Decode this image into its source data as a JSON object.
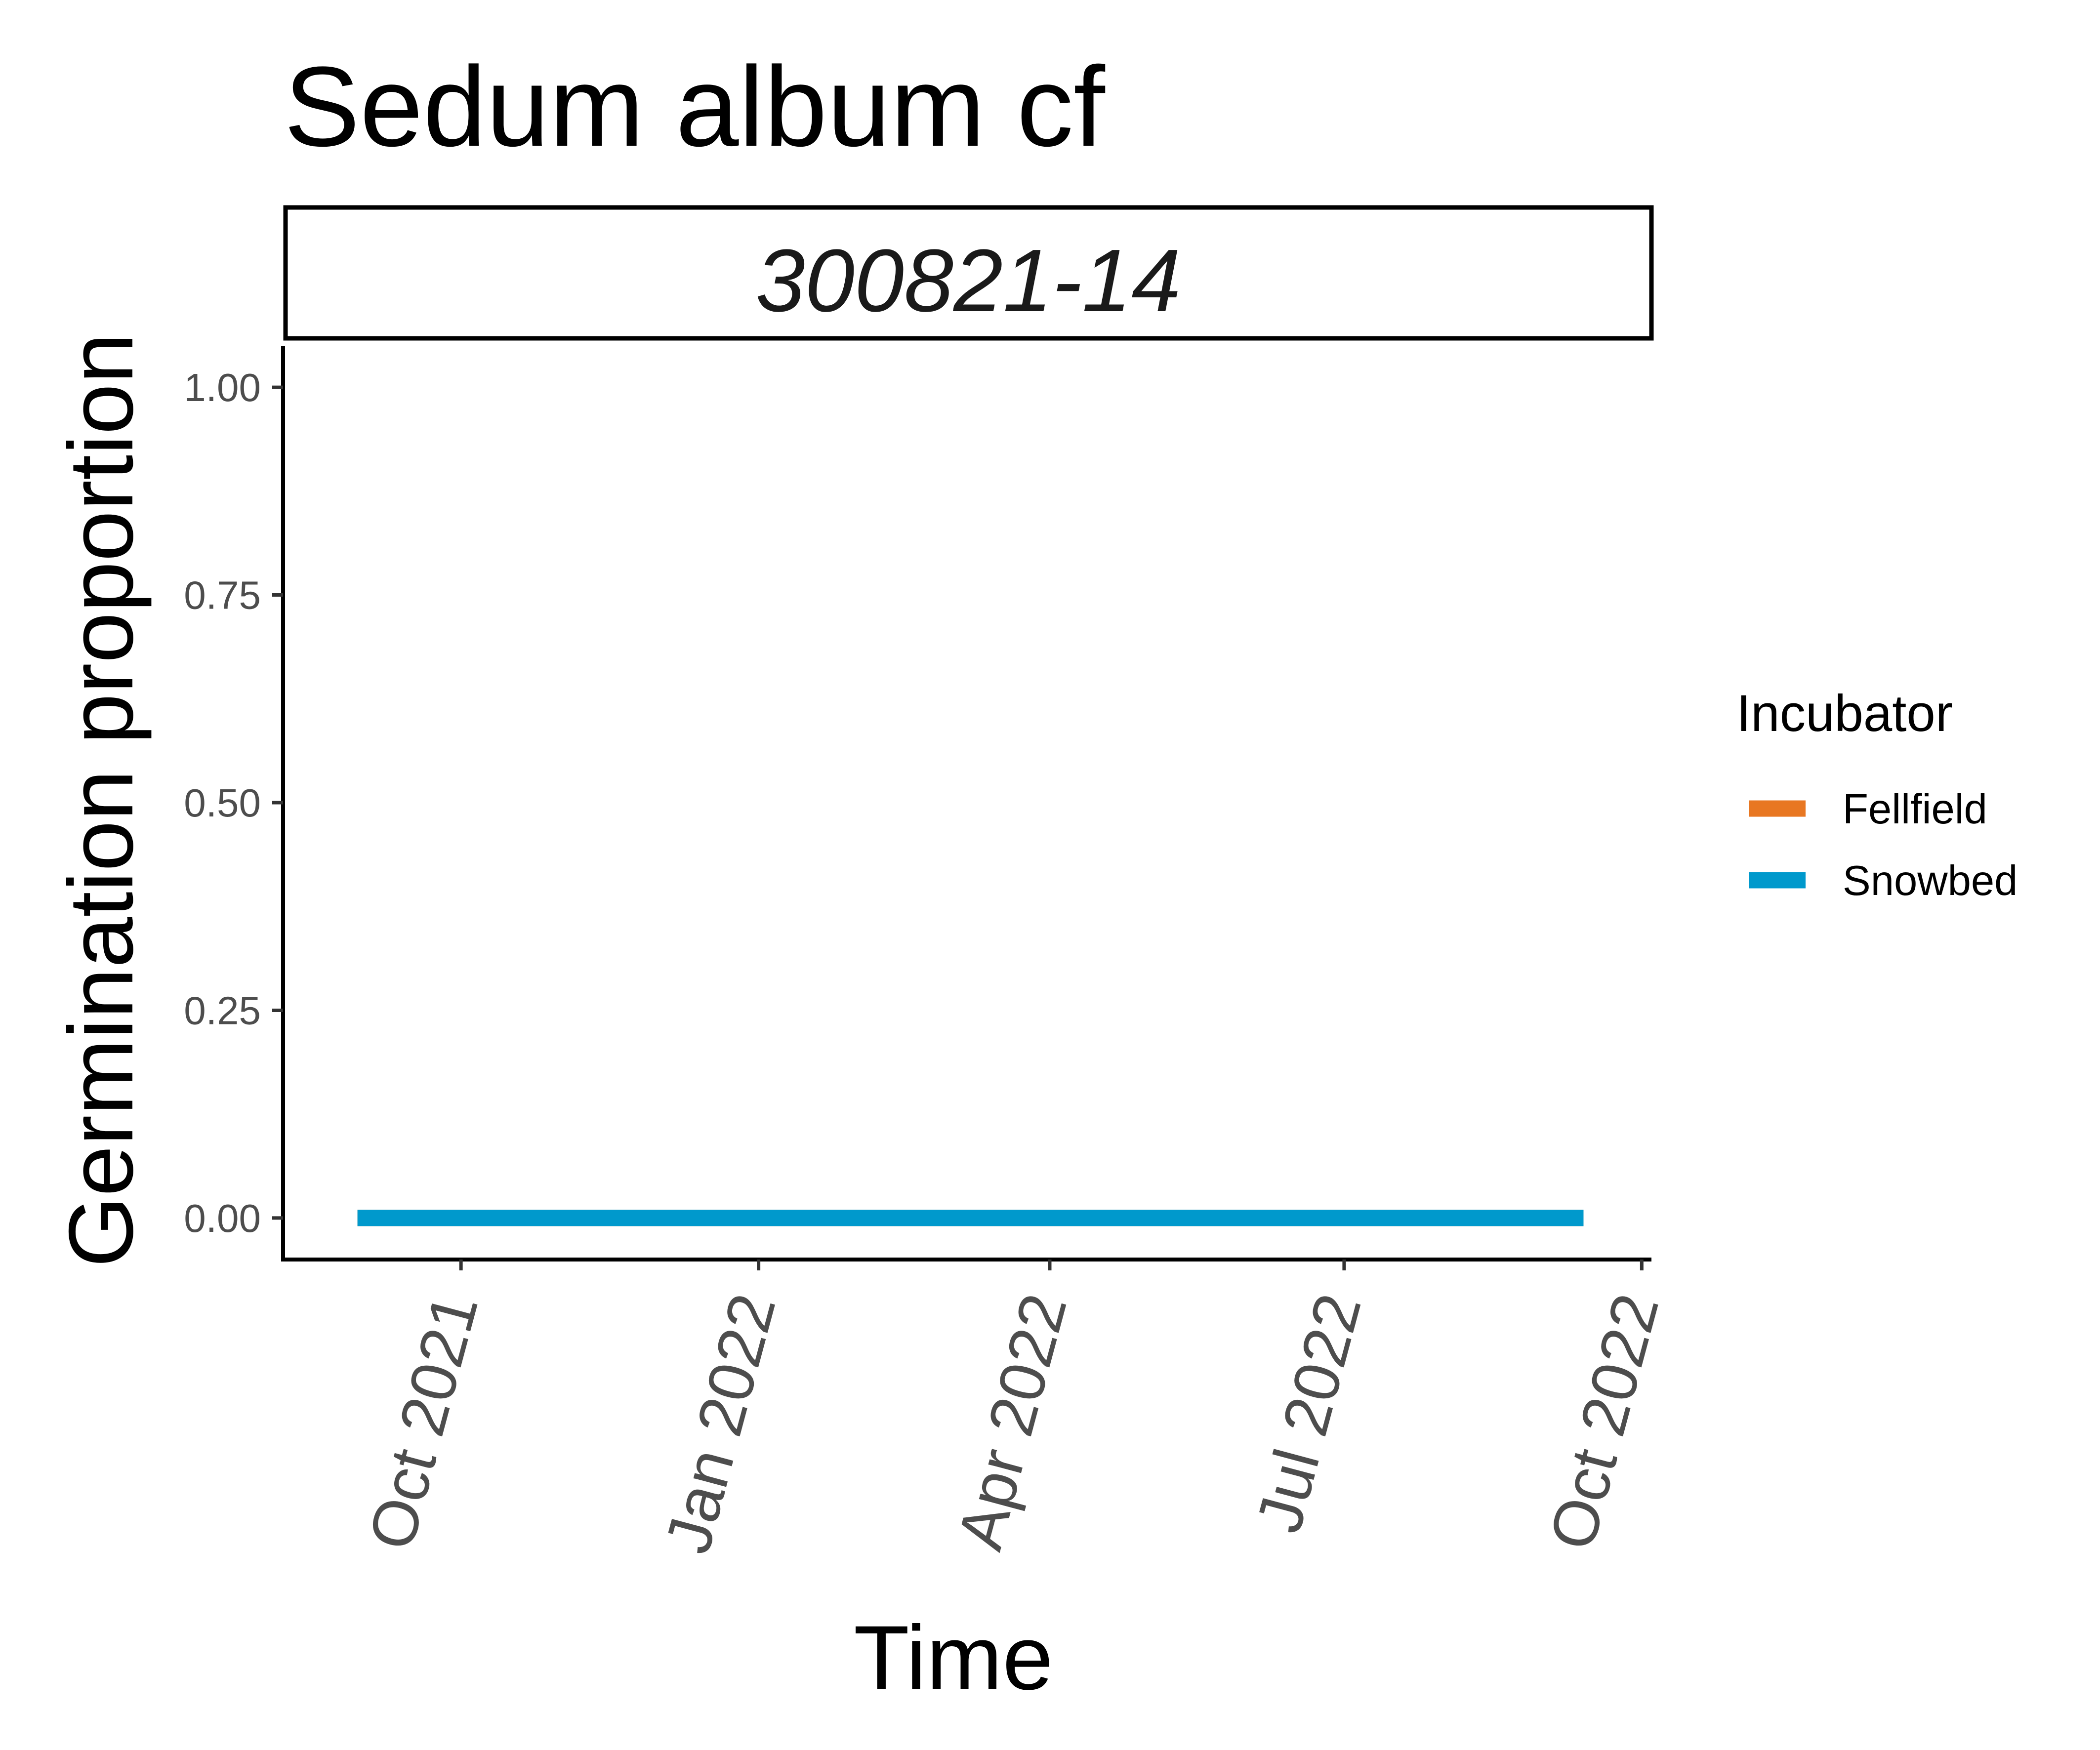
{
  "chart_data": {
    "type": "line",
    "title": "Sedum album cf",
    "facet_label": "300821-14",
    "xlabel": "Time",
    "ylabel": "Germination proportion",
    "ylim": [
      -0.05,
      1.05
    ],
    "xlim": [
      "2021-08-07",
      "2022-10-04"
    ],
    "y_ticks": [
      0,
      0.25,
      0.5,
      0.75,
      1
    ],
    "y_tick_labels": [
      "0.00",
      "0.25",
      "0.50",
      "0.75",
      "1.00"
    ],
    "x_ticks": [
      "2021-10-01",
      "2022-01-01",
      "2022-04-01",
      "2022-07-01",
      "2022-10-01"
    ],
    "x_tick_labels": [
      "Oct 2021",
      "Jan 2022",
      "Apr 2022",
      "Jul 2022",
      "Oct 2022"
    ],
    "legend": {
      "title": "Incubator",
      "position": "right",
      "entries": [
        {
          "name": "Fellfield",
          "color": "#E87722"
        },
        {
          "name": "Snowbed",
          "color": "#0099CC"
        }
      ]
    },
    "series": [
      {
        "name": "Fellfield",
        "color": "#E87722",
        "x": [
          "2021-08-30",
          "2022-09-13"
        ],
        "y": [
          0,
          0
        ]
      },
      {
        "name": "Snowbed",
        "color": "#0099CC",
        "x": [
          "2021-08-30",
          "2022-09-13"
        ],
        "y": [
          0,
          0
        ]
      }
    ],
    "grid": false
  }
}
